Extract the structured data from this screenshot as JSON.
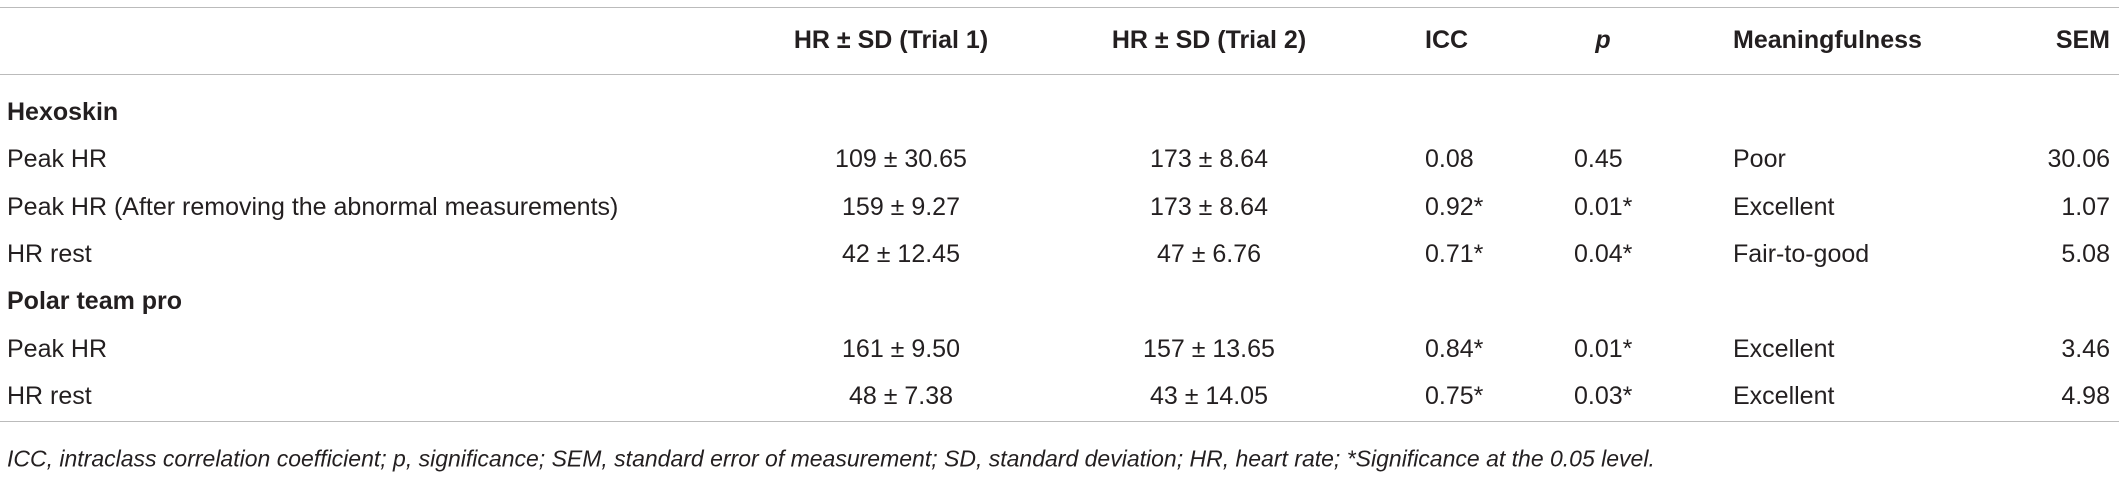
{
  "table": {
    "headers": [
      "HR ± SD (Trial 1)",
      "HR ± SD (Trial 2)",
      "ICC",
      "p",
      "Meaningfulness",
      "SEM"
    ],
    "sections": [
      {
        "title": "Hexoskin",
        "rows": [
          [
            "Peak HR",
            "109 ± 30.65",
            "173 ± 8.64",
            "0.08",
            "0.45",
            "Poor",
            "30.06"
          ],
          [
            "Peak HR (After removing the abnormal measurements)",
            "159 ± 9.27",
            "173 ± 8.64",
            "0.92*",
            "0.01*",
            "Excellent",
            "1.07"
          ],
          [
            "HR rest",
            "42 ± 12.45",
            "47 ± 6.76",
            "0.71*",
            "0.04*",
            "Fair-to-good",
            "5.08"
          ]
        ]
      },
      {
        "title": "Polar team pro",
        "rows": [
          [
            "Peak HR",
            "161 ± 9.50",
            "157 ± 13.65",
            "0.84*",
            "0.01*",
            "Excellent",
            "3.46"
          ],
          [
            "HR rest",
            "48 ± 7.38",
            "43 ± 14.05",
            "0.75*",
            "0.03*",
            "Excellent",
            "4.98"
          ]
        ]
      }
    ]
  },
  "footnote": "ICC, intraclass correlation coefficient; p, significance; SEM, standard error of measurement; SD, standard deviation; HR, heart rate; *Significance at the 0.05 level."
}
